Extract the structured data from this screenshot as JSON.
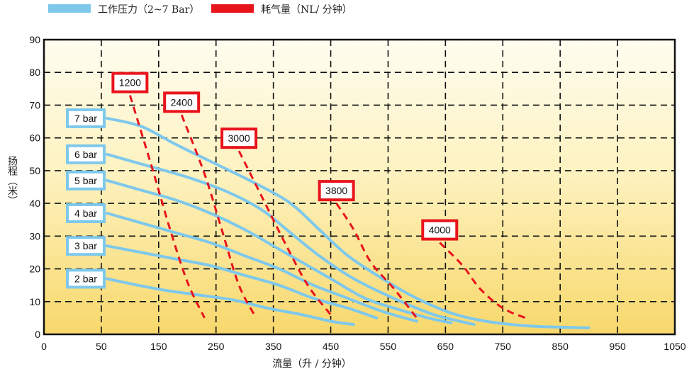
{
  "legend": [
    {
      "label": "工作压力（2~7 Bar）",
      "color": "#7ec8ec"
    },
    {
      "label": "耗气量（NL/ 分钟）",
      "color": "#e8141c"
    }
  ],
  "chart_data": {
    "type": "line",
    "xlabel": "流量（升 / 分钟）",
    "ylabel": "扬程（米）",
    "xlim": [
      0,
      1050
    ],
    "ylim": [
      0,
      90
    ],
    "xticks": [
      "0",
      "50",
      "150",
      "250",
      "350",
      "450",
      "550",
      "650",
      "750",
      "850",
      "950",
      "1050"
    ],
    "yticks": [
      0,
      10,
      20,
      30,
      40,
      50,
      60,
      70,
      80,
      90
    ],
    "grid": true,
    "background": {
      "top": "#fffdf0",
      "bottom": "#f8d86c"
    },
    "pressure_series": [
      {
        "name": "7 bar",
        "color": "#7ec8ec",
        "points": [
          [
            60,
            66
          ],
          [
            120,
            63.5
          ],
          [
            180,
            58
          ],
          [
            250,
            52
          ],
          [
            320,
            46
          ],
          [
            380,
            40
          ],
          [
            430,
            32
          ],
          [
            480,
            24
          ],
          [
            540,
            17
          ],
          [
            600,
            11
          ],
          [
            660,
            6.5
          ],
          [
            720,
            4
          ],
          [
            800,
            2.5
          ],
          [
            900,
            2
          ]
        ]
      },
      {
        "name": "6 bar",
        "color": "#7ec8ec",
        "points": [
          [
            60,
            55
          ],
          [
            120,
            52
          ],
          [
            200,
            48
          ],
          [
            270,
            43.5
          ],
          [
            330,
            38
          ],
          [
            380,
            31
          ],
          [
            430,
            24
          ],
          [
            490,
            17
          ],
          [
            560,
            11
          ],
          [
            630,
            6
          ],
          [
            700,
            3
          ]
        ]
      },
      {
        "name": "5 bar",
        "color": "#7ec8ec",
        "points": [
          [
            60,
            47
          ],
          [
            120,
            44
          ],
          [
            180,
            41
          ],
          [
            240,
            37
          ],
          [
            300,
            32
          ],
          [
            350,
            27
          ],
          [
            400,
            22
          ],
          [
            450,
            17
          ],
          [
            510,
            11
          ],
          [
            570,
            7.5
          ],
          [
            620,
            5
          ],
          [
            660,
            3.5
          ]
        ]
      },
      {
        "name": "4 bar",
        "color": "#7ec8ec",
        "points": [
          [
            60,
            37
          ],
          [
            120,
            34
          ],
          [
            180,
            31
          ],
          [
            240,
            28
          ],
          [
            300,
            24
          ],
          [
            360,
            20
          ],
          [
            420,
            15
          ],
          [
            480,
            11
          ],
          [
            540,
            7
          ],
          [
            600,
            4
          ]
        ]
      },
      {
        "name": "3 bar",
        "color": "#7ec8ec",
        "points": [
          [
            60,
            27
          ],
          [
            120,
            25
          ],
          [
            180,
            23
          ],
          [
            240,
            21
          ],
          [
            300,
            18
          ],
          [
            360,
            15
          ],
          [
            420,
            11
          ],
          [
            480,
            8
          ],
          [
            530,
            5
          ]
        ]
      },
      {
        "name": "2 bar",
        "color": "#7ec8ec",
        "points": [
          [
            60,
            17
          ],
          [
            100,
            15.5
          ],
          [
            160,
            13.5
          ],
          [
            220,
            12
          ],
          [
            280,
            10.5
          ],
          [
            340,
            8
          ],
          [
            400,
            6
          ],
          [
            450,
            4
          ],
          [
            490,
            3
          ]
        ]
      }
    ],
    "air_series": [
      {
        "name": "1200",
        "color": "#e8141c",
        "points": [
          [
            100,
            73
          ],
          [
            140,
            50
          ],
          [
            170,
            32
          ],
          [
            200,
            16
          ],
          [
            230,
            5
          ]
        ]
      },
      {
        "name": "2400",
        "color": "#e8141c",
        "points": [
          [
            190,
            67
          ],
          [
            230,
            49
          ],
          [
            260,
            32
          ],
          [
            290,
            15
          ],
          [
            320,
            5
          ]
        ]
      },
      {
        "name": "3000",
        "color": "#e8141c",
        "points": [
          [
            290,
            56
          ],
          [
            330,
            42
          ],
          [
            370,
            28
          ],
          [
            410,
            15
          ],
          [
            450,
            6
          ]
        ]
      },
      {
        "name": "3800",
        "color": "#e8141c",
        "points": [
          [
            460,
            40
          ],
          [
            490,
            32
          ],
          [
            520,
            22
          ],
          [
            560,
            14
          ],
          [
            600,
            5
          ]
        ]
      },
      {
        "name": "4000",
        "color": "#e8141c",
        "points": [
          [
            640,
            28
          ],
          [
            680,
            21
          ],
          [
            710,
            14
          ],
          [
            750,
            8
          ],
          [
            790,
            5
          ]
        ]
      }
    ]
  }
}
